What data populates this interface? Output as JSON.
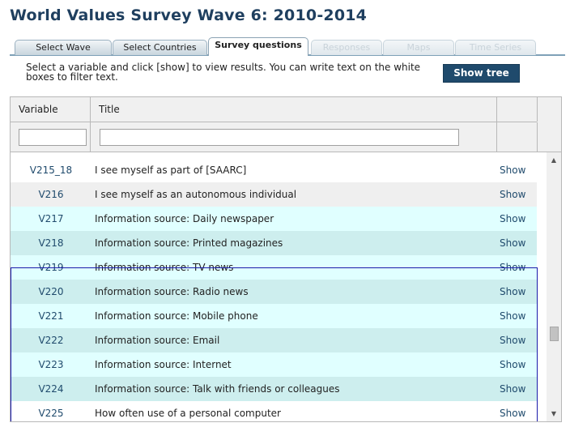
{
  "page": {
    "title": "World Values Survey Wave 6: 2010-2014"
  },
  "tabs": [
    {
      "label": "Select Wave",
      "state": "normal"
    },
    {
      "label": "Select Countries",
      "state": "normal"
    },
    {
      "label": "Survey questions",
      "state": "active"
    },
    {
      "label": "Responses",
      "state": "disabled"
    },
    {
      "label": "Maps",
      "state": "disabled"
    },
    {
      "label": "Time Series",
      "state": "disabled"
    }
  ],
  "instructions": "Select a variable and click [show] to view results. You can write text on the white boxes to filter text.",
  "toolbar": {
    "show_tree_label": "Show tree"
  },
  "grid": {
    "columns": {
      "variable": "Variable",
      "title": "Title"
    },
    "filters": {
      "variable_value": "",
      "title_value": ""
    },
    "rows": [
      {
        "variable": "V215_18",
        "title": "I see myself as part of [SAARC]",
        "action": "Show"
      },
      {
        "variable": "V216",
        "title": "I see myself as an autonomous individual",
        "action": "Show"
      },
      {
        "variable": "V217",
        "title": "Information source: Daily newspaper",
        "action": "Show"
      },
      {
        "variable": "V218",
        "title": "Information source: Printed magazines",
        "action": "Show"
      },
      {
        "variable": "V219",
        "title": "Information source: TV news",
        "action": "Show"
      },
      {
        "variable": "V220",
        "title": "Information source: Radio news",
        "action": "Show"
      },
      {
        "variable": "V221",
        "title": "Information source: Mobile phone",
        "action": "Show"
      },
      {
        "variable": "V222",
        "title": "Information source: Email",
        "action": "Show"
      },
      {
        "variable": "V223",
        "title": "Information source: Internet",
        "action": "Show"
      },
      {
        "variable": "V224",
        "title": "Information source: Talk with friends or colleagues",
        "action": "Show"
      },
      {
        "variable": "V225",
        "title": "How often use of a personal computer",
        "action": "Show"
      }
    ]
  },
  "colors": {
    "title": "#1f3f5f",
    "button_bg": "#1f4a6c",
    "selection_border": "#1a1aaa",
    "selected_row_light": "#e0ffff",
    "selected_row_dark": "#cdeeee"
  }
}
